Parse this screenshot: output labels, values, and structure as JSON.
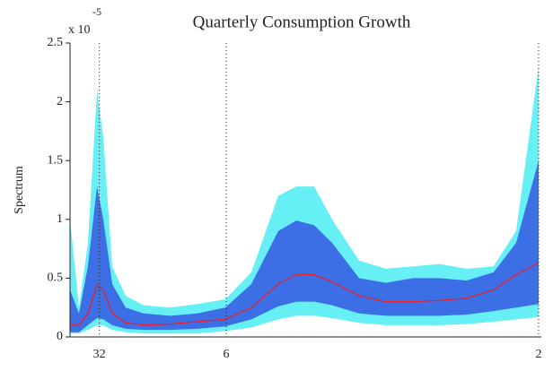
{
  "chart_data": {
    "type": "band",
    "title": "Quarterly Consumption Growth",
    "ylabel": "Spectrum",
    "y_multiplier": {
      "base": "x 10",
      "exponent": "-5"
    },
    "x": [
      0,
      0.06,
      0.12,
      0.181,
      0.223,
      0.283,
      0.373,
      0.493,
      0.674,
      0.855,
      1.041,
      1.216,
      1.396,
      1.517,
      1.637,
      1.757,
      1.938,
      2.118,
      2.299,
      2.479,
      2.66,
      2.84,
      2.991,
      3.142
    ],
    "bands": [
      {
        "color": "#66f0f5",
        "upper": [
          1.0,
          0.25,
          0.8,
          2.1,
          1.7,
          0.6,
          0.35,
          0.27,
          0.25,
          0.28,
          0.32,
          0.55,
          1.2,
          1.28,
          1.28,
          1.0,
          0.65,
          0.58,
          0.6,
          0.62,
          0.58,
          0.6,
          0.9,
          2.3
        ],
        "lower": [
          0.03,
          0.03,
          0.06,
          0.1,
          0.1,
          0.06,
          0.04,
          0.03,
          0.03,
          0.03,
          0.05,
          0.08,
          0.15,
          0.18,
          0.18,
          0.16,
          0.12,
          0.1,
          0.1,
          0.1,
          0.11,
          0.13,
          0.15,
          0.17
        ]
      },
      {
        "color": "#3c6ee6",
        "upper": [
          0.4,
          0.2,
          0.6,
          1.28,
          1.0,
          0.45,
          0.25,
          0.2,
          0.18,
          0.2,
          0.25,
          0.45,
          0.9,
          0.99,
          0.95,
          0.8,
          0.5,
          0.46,
          0.5,
          0.5,
          0.48,
          0.55,
          0.8,
          1.5
        ],
        "lower": [
          0.04,
          0.04,
          0.1,
          0.16,
          0.15,
          0.1,
          0.07,
          0.06,
          0.06,
          0.07,
          0.09,
          0.15,
          0.26,
          0.3,
          0.3,
          0.27,
          0.2,
          0.18,
          0.18,
          0.18,
          0.19,
          0.22,
          0.25,
          0.28
        ]
      }
    ],
    "series": [
      {
        "color": "#e8202a",
        "values": [
          0.1,
          0.1,
          0.2,
          0.44,
          0.4,
          0.2,
          0.12,
          0.1,
          0.11,
          0.13,
          0.15,
          0.25,
          0.45,
          0.53,
          0.53,
          0.47,
          0.35,
          0.3,
          0.3,
          0.31,
          0.33,
          0.4,
          0.53,
          0.63
        ]
      }
    ],
    "xlim": [
      0,
      3.16
    ],
    "xticks": [
      {
        "value": 0.19635,
        "label": "32"
      },
      {
        "value": 1.0472,
        "label": "6"
      },
      {
        "value": 3.14159,
        "label": "2"
      }
    ],
    "ylim": [
      0,
      2.5
    ],
    "yticks": [
      0,
      0.5,
      1,
      {
        "value": 1.5,
        "label": "1.5"
      },
      2,
      {
        "value": 2.5,
        "label": "2.5"
      }
    ]
  }
}
